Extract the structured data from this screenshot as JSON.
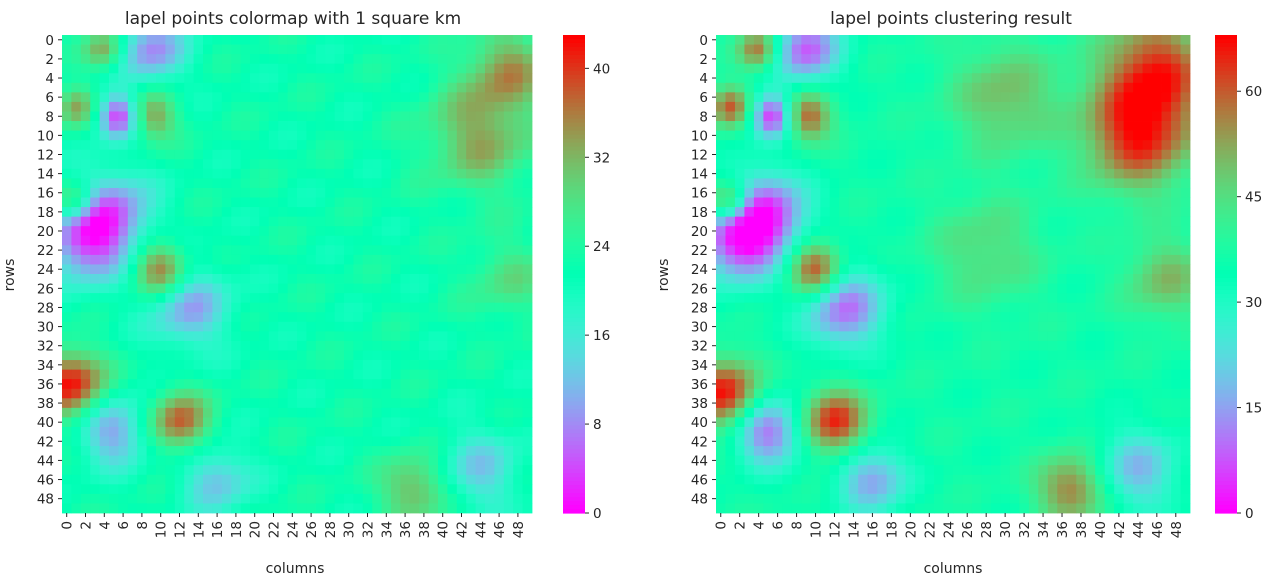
{
  "chart_data": [
    {
      "type": "heatmap",
      "title": "lapel points colormap with 1 square km",
      "xlabel": "columns",
      "ylabel": "rows",
      "rows": 50,
      "cols": 50,
      "xtick_labels": [
        "0",
        "2",
        "4",
        "6",
        "8",
        "10",
        "12",
        "14",
        "16",
        "18",
        "20",
        "22",
        "24",
        "26",
        "28",
        "30",
        "32",
        "34",
        "36",
        "38",
        "40",
        "42",
        "44",
        "46",
        "48"
      ],
      "ytick_labels": [
        "0",
        "2",
        "4",
        "6",
        "8",
        "10",
        "12",
        "14",
        "16",
        "18",
        "20",
        "22",
        "24",
        "26",
        "28",
        "30",
        "32",
        "34",
        "36",
        "38",
        "40",
        "42",
        "44",
        "46",
        "48"
      ],
      "colorbar": {
        "range": [
          0,
          43
        ],
        "ticks": [
          "0",
          "8",
          "16",
          "24",
          "32",
          "40"
        ],
        "colormap": "rainbow"
      },
      "features": [
        {
          "row": 1,
          "col": 9,
          "value": 8,
          "spread": 2.5
        },
        {
          "row": 8,
          "col": 5.5,
          "value": 2,
          "spread": 1.6
        },
        {
          "row": 21,
          "col": 2,
          "value": 5,
          "spread": 3
        },
        {
          "row": 18,
          "col": 5,
          "value": 9,
          "spread": 3
        },
        {
          "row": 28,
          "col": 13,
          "value": 10,
          "spread": 3
        },
        {
          "row": 41,
          "col": 5,
          "value": 9,
          "spread": 2.5
        },
        {
          "row": 46,
          "col": 16,
          "value": 12,
          "spread": 2.5
        },
        {
          "row": 45,
          "col": 44,
          "value": 13,
          "spread": 3
        },
        {
          "row": 1,
          "col": 4,
          "value": 34,
          "spread": 1.5
        },
        {
          "row": 8,
          "col": 9,
          "value": 35,
          "spread": 1.8
        },
        {
          "row": 7,
          "col": 1,
          "value": 33,
          "spread": 1.5
        },
        {
          "row": 17,
          "col": 1,
          "value": 35,
          "spread": 1.5
        },
        {
          "row": 24,
          "col": 10,
          "value": 38,
          "spread": 2
        },
        {
          "row": 36,
          "col": 0.5,
          "value": 42,
          "spread": 2.5
        },
        {
          "row": 40,
          "col": 12,
          "value": 38,
          "spread": 2.2
        },
        {
          "row": 47,
          "col": 37,
          "value": 33,
          "spread": 2.5
        },
        {
          "row": 10,
          "col": 44,
          "value": 33,
          "spread": 4
        },
        {
          "row": 3,
          "col": 47,
          "value": 33,
          "spread": 3
        },
        {
          "row": 25,
          "col": 47,
          "value": 28,
          "spread": 3
        }
      ],
      "background": 22
    },
    {
      "type": "heatmap",
      "title": "lapel points clustering result",
      "xlabel": "columns",
      "ylabel": "rows",
      "rows": 50,
      "cols": 50,
      "xtick_labels": [
        "0",
        "2",
        "4",
        "6",
        "8",
        "10",
        "12",
        "14",
        "16",
        "18",
        "20",
        "22",
        "24",
        "26",
        "28",
        "30",
        "32",
        "34",
        "36",
        "38",
        "40",
        "42",
        "44",
        "46",
        "48"
      ],
      "ytick_labels": [
        "0",
        "2",
        "4",
        "6",
        "8",
        "10",
        "12",
        "14",
        "16",
        "18",
        "20",
        "22",
        "24",
        "26",
        "28",
        "30",
        "32",
        "34",
        "36",
        "38",
        "40",
        "42",
        "44",
        "46",
        "48"
      ],
      "colorbar": {
        "range": [
          0,
          68
        ],
        "ticks": [
          "0",
          "15",
          "30",
          "45",
          "60"
        ],
        "colormap": "rainbow"
      },
      "features": [
        {
          "row": 1,
          "col": 9,
          "value": 8,
          "spread": 2.5
        },
        {
          "row": 8,
          "col": 5.5,
          "value": 2,
          "spread": 1.6
        },
        {
          "row": 21,
          "col": 2,
          "value": 5,
          "spread": 3
        },
        {
          "row": 18,
          "col": 5,
          "value": 10,
          "spread": 3
        },
        {
          "row": 28,
          "col": 13,
          "value": 10,
          "spread": 3
        },
        {
          "row": 41,
          "col": 5,
          "value": 9,
          "spread": 2.5
        },
        {
          "row": 46,
          "col": 16,
          "value": 15,
          "spread": 2.5
        },
        {
          "row": 45,
          "col": 44,
          "value": 18,
          "spread": 3
        },
        {
          "row": 1,
          "col": 4,
          "value": 60,
          "spread": 1.5
        },
        {
          "row": 8,
          "col": 9,
          "value": 62,
          "spread": 1.8
        },
        {
          "row": 7,
          "col": 1,
          "value": 60,
          "spread": 1.5
        },
        {
          "row": 17,
          "col": 1,
          "value": 62,
          "spread": 1.5
        },
        {
          "row": 24,
          "col": 10,
          "value": 66,
          "spread": 2
        },
        {
          "row": 37,
          "col": 0.5,
          "value": 67,
          "spread": 2.5
        },
        {
          "row": 40,
          "col": 12,
          "value": 66,
          "spread": 2.3
        },
        {
          "row": 47,
          "col": 37,
          "value": 58,
          "spread": 2.5
        },
        {
          "row": 10,
          "col": 44,
          "value": 64,
          "spread": 4
        },
        {
          "row": 3,
          "col": 46,
          "value": 62,
          "spread": 4
        },
        {
          "row": 6,
          "col": 30,
          "value": 50,
          "spread": 4
        },
        {
          "row": 22,
          "col": 28,
          "value": 46,
          "spread": 4
        },
        {
          "row": 25,
          "col": 47,
          "value": 50,
          "spread": 3
        }
      ],
      "background": 36
    }
  ]
}
